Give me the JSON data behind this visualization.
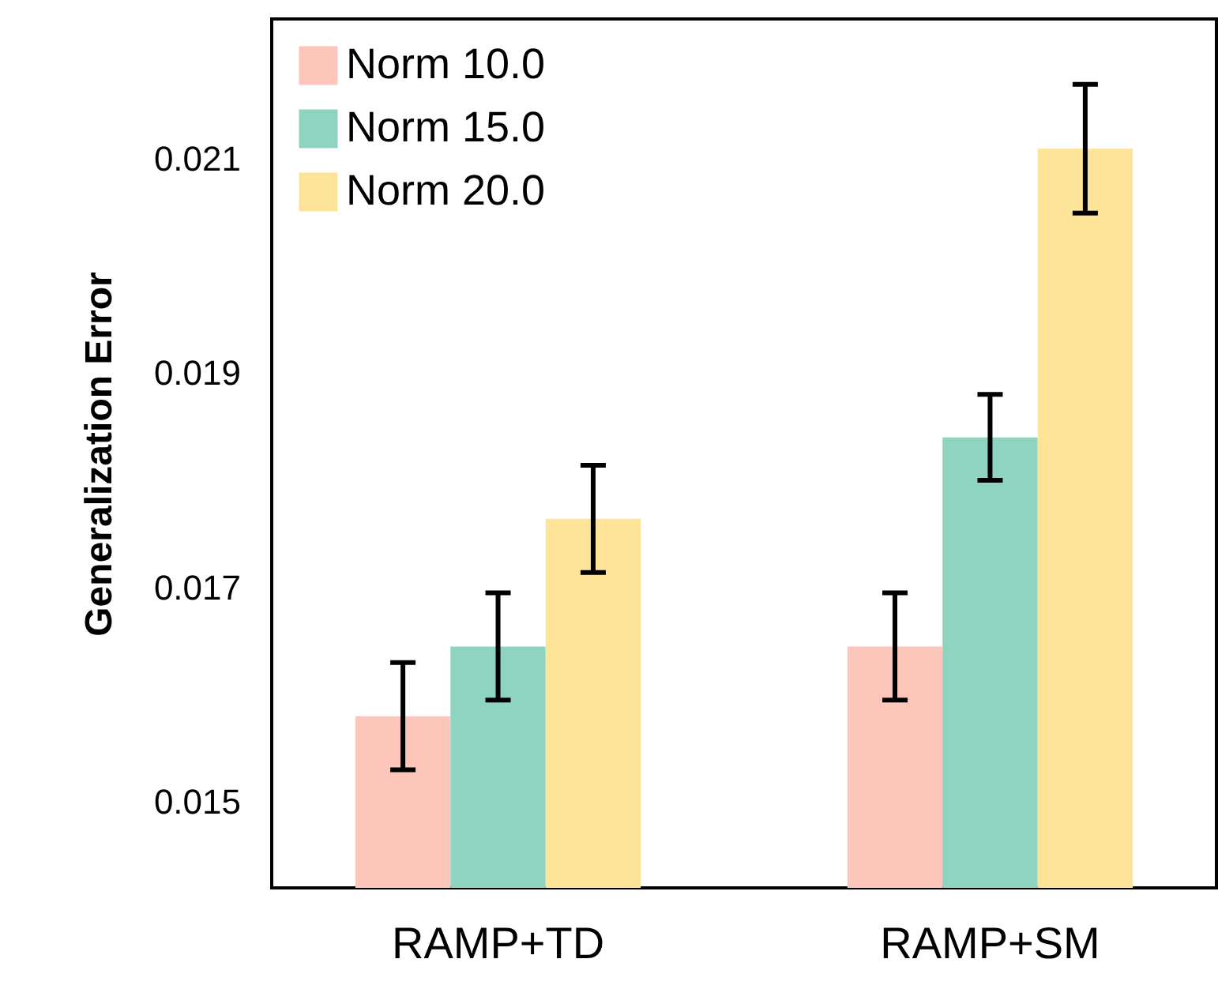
{
  "chart_data": {
    "type": "bar",
    "ylabel": "Generalization Error",
    "categories": [
      "RAMP+TD",
      "RAMP+SM"
    ],
    "series": [
      {
        "name": "Norm 10.0",
        "color": "#fdc6bb",
        "values": [
          0.0158,
          0.01645
        ],
        "errors": [
          0.0005,
          0.0005
        ]
      },
      {
        "name": "Norm 15.0",
        "color": "#8fd3c1",
        "values": [
          0.01645,
          0.0184
        ],
        "errors": [
          0.0005,
          0.0004
        ]
      },
      {
        "name": "Norm 20.0",
        "color": "#fde499",
        "values": [
          0.01764,
          0.02109
        ],
        "errors": [
          0.0005,
          0.0006
        ]
      }
    ],
    "ylim": [
      0.0142,
      0.0223
    ],
    "yticks": [
      0.015,
      0.017,
      0.019,
      0.021
    ],
    "grid": false,
    "legend": "top left"
  }
}
